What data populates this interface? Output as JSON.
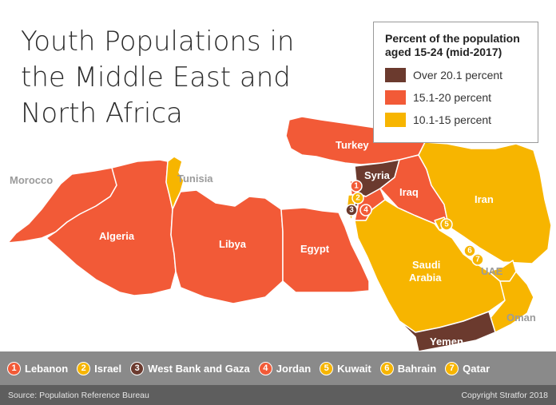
{
  "title": [
    "Youth Populations in",
    "the Middle East and",
    "North Africa"
  ],
  "legend": {
    "title": [
      "Percent of the population",
      "aged 15-24 (mid-2017)"
    ],
    "items": [
      {
        "label": "Over 20.1 percent",
        "color": "#6b3a2e"
      },
      {
        "label": "15.1-20 percent",
        "color": "#f25a37"
      },
      {
        "label": "10.1-15 percent",
        "color": "#f7b500"
      }
    ]
  },
  "countries": {
    "morocco": "Morocco",
    "algeria": "Algeria",
    "tunisia": "Tunisia",
    "libya": "Libya",
    "egypt": "Egypt",
    "turkey": "Turkey",
    "syria": "Syria",
    "iraq": "Iraq",
    "iran": "Iran",
    "saudi": [
      "Saudi",
      "Arabia"
    ],
    "uae": "UAE",
    "oman": "Oman",
    "yemen": "Yemen"
  },
  "key": [
    {
      "num": "1",
      "label": "Lebanon",
      "color": "#f25a37"
    },
    {
      "num": "2",
      "label": "Israel",
      "color": "#f7b500"
    },
    {
      "num": "3",
      "label": "West Bank and Gaza",
      "color": "#6b3a2e"
    },
    {
      "num": "4",
      "label": "Jordan",
      "color": "#f25a37"
    },
    {
      "num": "5",
      "label": "Kuwait",
      "color": "#f7b500"
    },
    {
      "num": "6",
      "label": "Bahrain",
      "color": "#f7b500"
    },
    {
      "num": "7",
      "label": "Qatar",
      "color": "#f7b500"
    }
  ],
  "footer": {
    "source": "Source: Population Reference Bureau",
    "copyright": "Copyright Stratfor 2018"
  }
}
